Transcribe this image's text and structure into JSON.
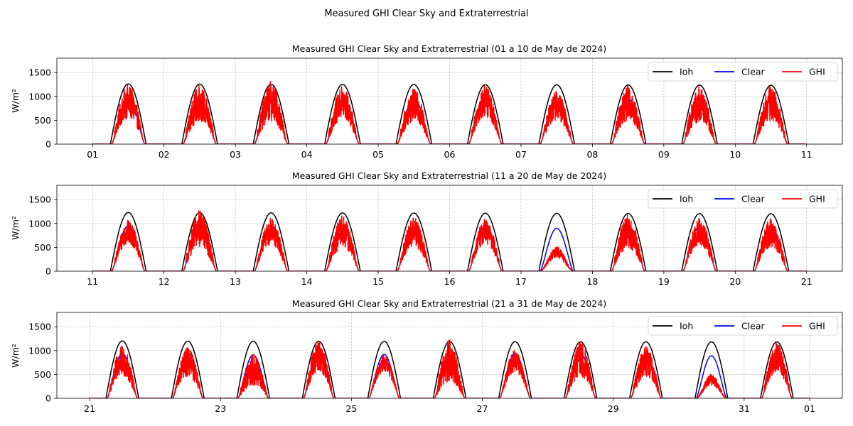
{
  "figure": {
    "suptitle": "Measured GHI Clear Sky and Extraterrestrial"
  },
  "colors": {
    "Ioh": "#000000",
    "Clear": "#0000ff",
    "GHI": "#ff0000",
    "grid": "#b0b0b0"
  },
  "chart_data": [
    {
      "type": "line",
      "title": "Measured GHI Clear Sky and Extraterrestrial (01 a 10 de May de 2024)",
      "ylabel": "W/m²",
      "xlabel": "",
      "x_range_days": [
        1,
        11
      ],
      "xlim_days": [
        0.5,
        11.5
      ],
      "ylim": [
        0,
        1800
      ],
      "yticks": [
        0,
        500,
        1000,
        1500
      ],
      "xticks": [
        {
          "day": 1,
          "label": "01"
        },
        {
          "day": 2,
          "label": "02"
        },
        {
          "day": 3,
          "label": "03"
        },
        {
          "day": 4,
          "label": "04"
        },
        {
          "day": 5,
          "label": "05"
        },
        {
          "day": 6,
          "label": "06"
        },
        {
          "day": 7,
          "label": "07"
        },
        {
          "day": 8,
          "label": "08"
        },
        {
          "day": 9,
          "label": "09"
        },
        {
          "day": 10,
          "label": "10"
        },
        {
          "day": 11,
          "label": "11"
        }
      ],
      "grid": true,
      "legend": "top-right",
      "series": [
        {
          "name": "Ioh",
          "daily_peak": [
            1262,
            1258,
            1255,
            1252,
            1249,
            1246,
            1243,
            1240,
            1237,
            1234
          ]
        },
        {
          "name": "Clear",
          "daily_peak": [
            950,
            950,
            940,
            930,
            960,
            980,
            960,
            960,
            950,
            940
          ]
        },
        {
          "name": "GHI",
          "daily_peak": [
            1240,
            1230,
            1310,
            1200,
            1150,
            1230,
            1110,
            1220,
            1200,
            1210
          ],
          "daily_low": [
            300,
            220,
            200,
            300,
            250,
            350,
            300,
            250,
            200,
            250
          ]
        }
      ]
    },
    {
      "type": "line",
      "title": "Measured GHI Clear Sky and Extraterrestrial (11 a 20 de May de 2024)",
      "ylabel": "W/m²",
      "xlabel": "",
      "x_range_days": [
        11,
        21
      ],
      "xlim_days": [
        10.5,
        21.5
      ],
      "ylim": [
        0,
        1800
      ],
      "yticks": [
        0,
        500,
        1000,
        1500
      ],
      "xticks": [
        {
          "day": 11,
          "label": "11"
        },
        {
          "day": 12,
          "label": "12"
        },
        {
          "day": 13,
          "label": "13"
        },
        {
          "day": 14,
          "label": "14"
        },
        {
          "day": 15,
          "label": "15"
        },
        {
          "day": 16,
          "label": "16"
        },
        {
          "day": 17,
          "label": "17"
        },
        {
          "day": 18,
          "label": "18"
        },
        {
          "day": 19,
          "label": "19"
        },
        {
          "day": 20,
          "label": "20"
        },
        {
          "day": 21,
          "label": "21"
        }
      ],
      "grid": true,
      "legend": "top-right",
      "series": [
        {
          "name": "Ioh",
          "daily_peak": [
            1231,
            1228,
            1225,
            1222,
            1219,
            1216,
            1213,
            1210,
            1207,
            1204
          ]
        },
        {
          "name": "Clear",
          "daily_peak": [
            950,
            960,
            960,
            950,
            940,
            930,
            900,
            940,
            940,
            940
          ]
        },
        {
          "name": "GHI",
          "daily_peak": [
            1060,
            1270,
            1110,
            1160,
            1120,
            1090,
            510,
            1180,
            1100,
            1100
          ],
          "daily_low": [
            400,
            250,
            350,
            250,
            300,
            400,
            60,
            250,
            350,
            300
          ]
        }
      ]
    },
    {
      "type": "line",
      "title": "Measured GHI Clear Sky and Extraterrestrial (21 a 31 de May de 2024)",
      "ylabel": "W/m²",
      "xlabel": "",
      "x_range_days": [
        21,
        32
      ],
      "xlim_days": [
        20.5,
        32.5
      ],
      "ylim": [
        0,
        1800
      ],
      "yticks": [
        0,
        500,
        1000,
        1500
      ],
      "xticks": [
        {
          "day": 21,
          "label": "21"
        },
        {
          "day": 23,
          "label": "23"
        },
        {
          "day": 25,
          "label": "25"
        },
        {
          "day": 27,
          "label": "27"
        },
        {
          "day": 29,
          "label": "29"
        },
        {
          "day": 31,
          "label": "31"
        },
        {
          "day": 32,
          "label": "01"
        }
      ],
      "grid": true,
      "legend": "top-right",
      "series": [
        {
          "name": "Ioh",
          "daily_peak": [
            1202,
            1199,
            1197,
            1195,
            1193,
            1191,
            1189,
            1187,
            1185,
            1183,
            1181
          ]
        },
        {
          "name": "Clear",
          "daily_peak": [
            940,
            940,
            910,
            930,
            920,
            900,
            950,
            930,
            920,
            890,
            880
          ]
        },
        {
          "name": "GHI",
          "daily_peak": [
            1090,
            1060,
            920,
            1200,
            900,
            1220,
            1000,
            1190,
            1080,
            500,
            1150
          ],
          "daily_low": [
            250,
            250,
            50,
            350,
            450,
            50,
            400,
            200,
            250,
            250,
            350
          ]
        }
      ]
    }
  ]
}
